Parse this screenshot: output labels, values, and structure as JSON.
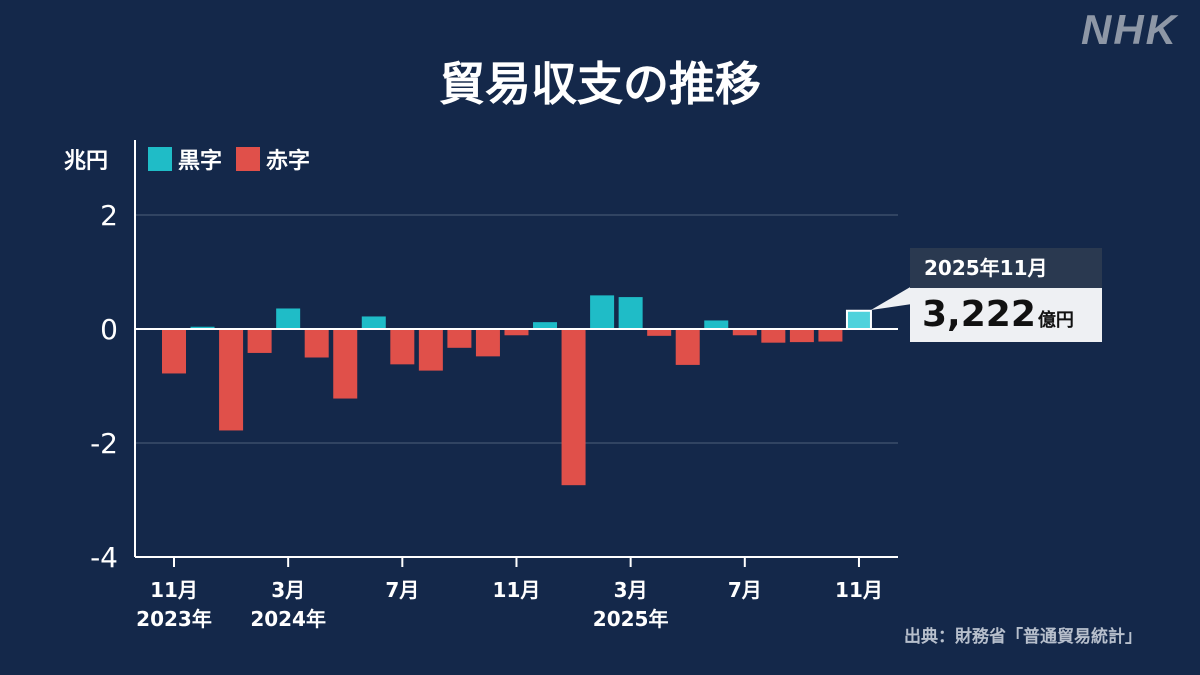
{
  "logo": "NHK",
  "title": "貿易収支の推移",
  "unit_label": "兆円",
  "legend": [
    {
      "label": "黒字",
      "color": "#1fbcc7"
    },
    {
      "label": "赤字",
      "color": "#e0504a"
    }
  ],
  "source": "出典：財務省「普通貿易統計」",
  "callout": {
    "period": "2025年11月",
    "value": "3,222",
    "unit": "億円"
  },
  "colors": {
    "surplus": "#1fbcc7",
    "deficit": "#e0504a",
    "highlight": "#4fd2dc",
    "axis": "#ffffff",
    "grid": "#3b4d6b",
    "background": "#14284a"
  },
  "chart_data": {
    "type": "bar",
    "unit": "兆円",
    "ylim": [
      -4,
      2.8
    ],
    "yticks": [
      2,
      0,
      -2,
      -4
    ],
    "grid": true,
    "legend_position": "top-left",
    "categories": [
      "2023-11",
      "2023-12",
      "2024-01",
      "2024-02",
      "2024-03",
      "2024-04",
      "2024-05",
      "2024-06",
      "2024-07",
      "2024-08",
      "2024-09",
      "2024-10",
      "2024-11",
      "2024-12",
      "2025-01",
      "2025-02",
      "2025-03",
      "2025-04",
      "2025-05",
      "2025-06",
      "2025-07",
      "2025-08",
      "2025-09",
      "2025-10",
      "2025-11"
    ],
    "values": [
      -0.78,
      0.04,
      -1.78,
      -0.42,
      0.36,
      -0.5,
      -1.22,
      0.22,
      -0.62,
      -0.73,
      -0.33,
      -0.48,
      -0.11,
      0.12,
      -2.74,
      0.59,
      0.56,
      -0.12,
      -0.63,
      0.15,
      -0.11,
      -0.24,
      -0.23,
      -0.22,
      0.32
    ],
    "highlight_index": 24,
    "xtick_labels": [
      {
        "index": 0,
        "label": "11月",
        "sublabel": "2023年"
      },
      {
        "index": 4,
        "label": "3月",
        "sublabel": "2024年"
      },
      {
        "index": 8,
        "label": "7月",
        "sublabel": ""
      },
      {
        "index": 12,
        "label": "11月",
        "sublabel": ""
      },
      {
        "index": 16,
        "label": "3月",
        "sublabel": "2025年"
      },
      {
        "index": 20,
        "label": "7月",
        "sublabel": ""
      },
      {
        "index": 24,
        "label": "11月",
        "sublabel": ""
      }
    ]
  }
}
